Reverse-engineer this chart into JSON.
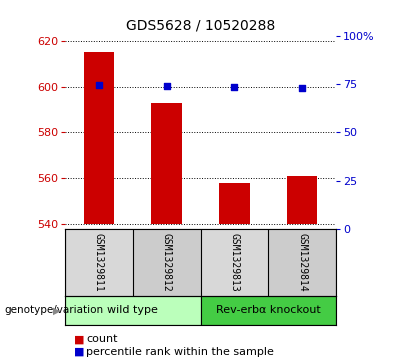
{
  "title": "GDS5628 / 10520288",
  "samples": [
    "GSM1329811",
    "GSM1329812",
    "GSM1329813",
    "GSM1329814"
  ],
  "bar_values": [
    615.0,
    593.0,
    558.0,
    561.0
  ],
  "bar_bottom": 540,
  "bar_color": "#cc0000",
  "percentile_values": [
    74.5,
    74.0,
    73.5,
    73.0
  ],
  "percentile_color": "#0000cc",
  "ylim_left": [
    538,
    622
  ],
  "ylim_right": [
    0,
    100
  ],
  "yticks_left": [
    540,
    560,
    580,
    600,
    620
  ],
  "yticks_right": [
    0,
    25,
    50,
    75,
    100
  ],
  "ytick_labels_right": [
    "0",
    "25",
    "50",
    "75",
    "100%"
  ],
  "groups": [
    {
      "label": "wild type",
      "samples": [
        0,
        1
      ],
      "color": "#bbffbb"
    },
    {
      "label": "Rev-erbα knockout",
      "samples": [
        2,
        3
      ],
      "color": "#44cc44"
    }
  ],
  "group_row_label": "genotype/variation",
  "legend_count_label": "count",
  "legend_percentile_label": "percentile rank within the sample",
  "bar_width": 0.45,
  "background_color": "#ffffff",
  "plot_bg_color": "#ffffff",
  "left_tick_color": "#cc0000",
  "right_tick_color": "#0000cc",
  "title_fontsize": 10,
  "tick_fontsize": 8,
  "sample_label_fontsize": 7,
  "group_fontsize": 8,
  "legend_fontsize": 8
}
